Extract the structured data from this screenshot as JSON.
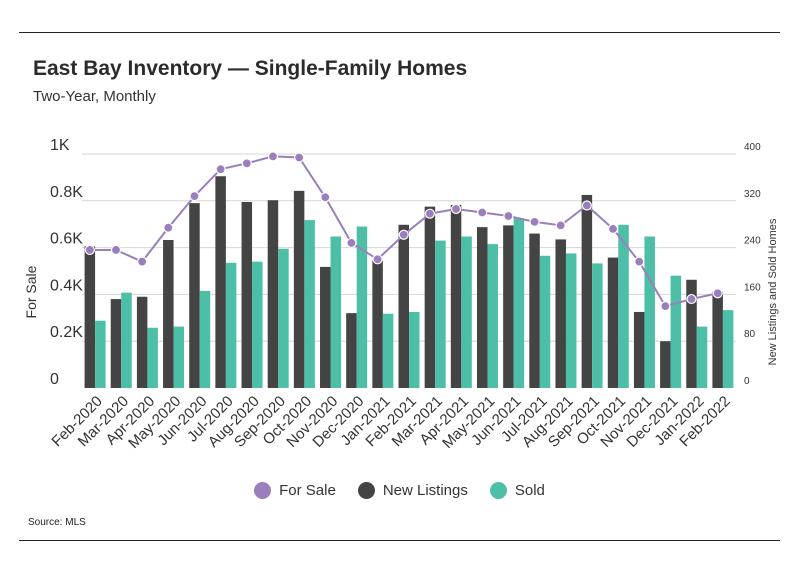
{
  "header": {
    "title": "East Bay Inventory — Single-Family Homes",
    "subtitle": "Two-Year, Monthly"
  },
  "footer": {
    "source": "Source: MLS"
  },
  "colors": {
    "for_sale": "#9b7fbd",
    "new_listings": "#444444",
    "sold": "#4cbfa6",
    "grid": "#d6d6d6"
  },
  "legend": [
    {
      "label": "For Sale",
      "color": "#9b7fbd"
    },
    {
      "label": "New Listings",
      "color": "#444444"
    },
    {
      "label": "Sold",
      "color": "#4cbfa6"
    }
  ],
  "chart_data": {
    "type": "bar",
    "categories": [
      "Feb-2020",
      "Mar-2020",
      "Apr-2020",
      "May-2020",
      "Jun-2020",
      "Jul-2020",
      "Aug-2020",
      "Sep-2020",
      "Oct-2020",
      "Nov-2020",
      "Dec-2020",
      "Jan-2021",
      "Feb-2021",
      "Mar-2021",
      "Apr-2021",
      "May-2021",
      "Jun-2021",
      "Jul-2021",
      "Aug-2021",
      "Sep-2021",
      "Oct-2021",
      "Nov-2021",
      "Dec-2021",
      "Jan-2022",
      "Feb-2022"
    ],
    "ylabel": "For Sale",
    "y2label": "New Listings and Sold Homes",
    "ylim": [
      0,
      1000
    ],
    "y2lim": [
      0,
      400
    ],
    "yticks": [
      0,
      200,
      400,
      600,
      800,
      1000
    ],
    "ytick_labels": [
      "0",
      "0.2K",
      "0.4K",
      "0.6K",
      "0.8K",
      "1K"
    ],
    "y2ticks": [
      0,
      80,
      160,
      240,
      320,
      400
    ],
    "y2tick_labels": [
      "0",
      "80",
      "160",
      "240",
      "320",
      "400"
    ],
    "grid": true,
    "legend_position": "bottom",
    "series": [
      {
        "name": "For Sale",
        "type": "line",
        "axis": "left",
        "values": [
          590,
          590,
          540,
          685,
          820,
          935,
          960,
          990,
          985,
          815,
          620,
          550,
          655,
          745,
          765,
          750,
          735,
          710,
          695,
          780,
          680,
          540,
          350,
          380,
          405
        ]
      },
      {
        "name": "New Listings",
        "type": "bar",
        "axis": "right",
        "values": [
          242,
          152,
          156,
          253,
          316,
          362,
          318,
          321,
          337,
          207,
          128,
          218,
          279,
          310,
          313,
          275,
          278,
          264,
          254,
          330,
          223,
          130,
          80,
          185,
          165
        ]
      },
      {
        "name": "Sold",
        "type": "bar",
        "axis": "right",
        "values": [
          115,
          163,
          103,
          105,
          166,
          214,
          216,
          238,
          287,
          259,
          276,
          127,
          130,
          252,
          259,
          246,
          290,
          226,
          230,
          213,
          279,
          259,
          192,
          105,
          133
        ]
      }
    ]
  }
}
